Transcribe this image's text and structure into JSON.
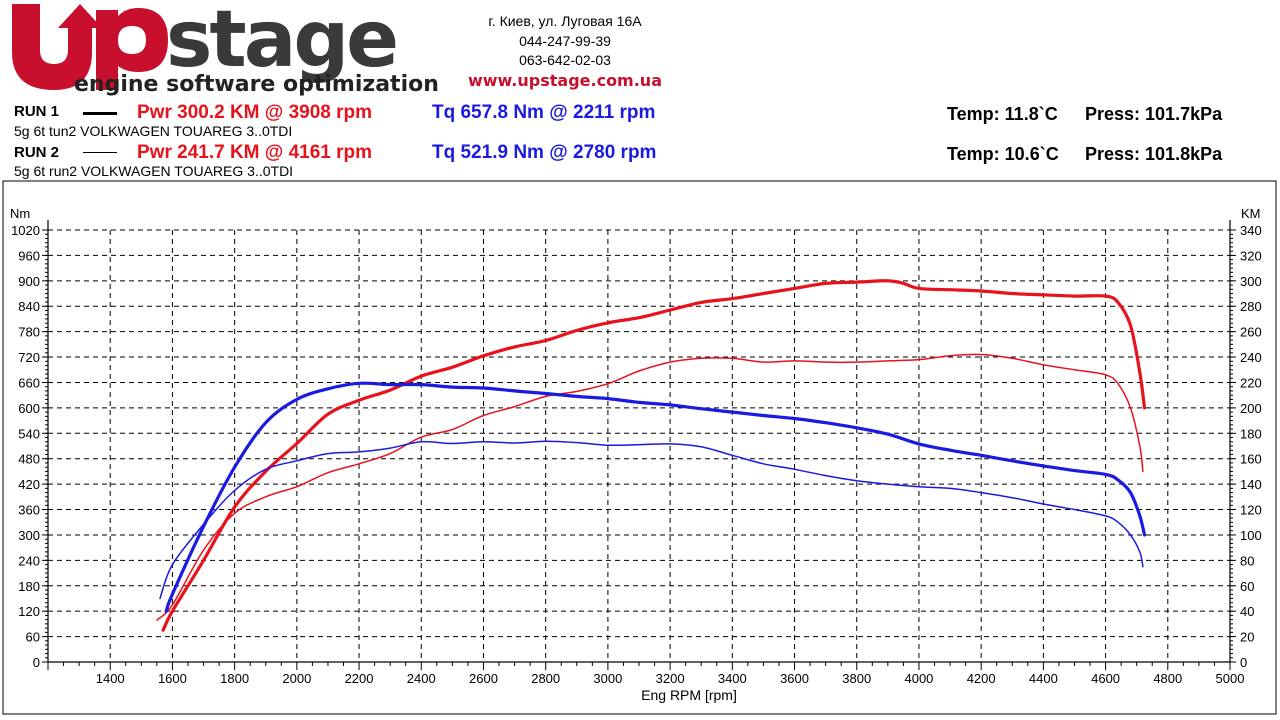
{
  "header": {
    "logo_text": "Upstage",
    "logo_tagline": "engine software optimization",
    "address": "г. Киев, ул. Луговая 16А",
    "phone1": "044-247-99-39",
    "phone2": "063-642-02-03",
    "website": "www.upstage.com.ua"
  },
  "runs": [
    {
      "label": "RUN 1",
      "description": "5g 6t tun2 VOLKWAGEN TOUAREG 3..0TDI",
      "power": "Pwr  300.2 KM @ 3908 rpm",
      "torque": "Tq 657.8 Nm @ 2211 rpm",
      "temp": "Temp: 11.8`C",
      "press": "Press: 101.7kPa"
    },
    {
      "label": "RUN 2",
      "description": "5g 6t run2 VOLKWAGEN TOUAREG 3..0TDI",
      "power": "Pwr  241.7 KM @ 4161 rpm",
      "torque": "Tq 521.9 Nm @ 2780 rpm",
      "temp": "Temp: 10.6`C",
      "press": "Press: 101.8kPa"
    }
  ],
  "colors": {
    "power": "#e8121c",
    "torque": "#1a1ae0",
    "logo_red": "#c8102e",
    "logo_grey": "#3a3a3a"
  },
  "chart_data": {
    "type": "line",
    "xlabel": "Eng RPM [rpm]",
    "ylabel_left": "Nm",
    "ylabel_right": "KM",
    "xlim": [
      1200,
      5000
    ],
    "ylim_left": [
      0,
      1020
    ],
    "ylim_right": [
      0,
      340
    ],
    "x_ticks": [
      1400,
      1600,
      1800,
      2000,
      2200,
      2400,
      2600,
      2800,
      3000,
      3200,
      3400,
      3600,
      3800,
      4000,
      4200,
      4400,
      4600,
      4800,
      5000
    ],
    "y_ticks_left": [
      0,
      60,
      120,
      180,
      240,
      300,
      360,
      420,
      480,
      540,
      600,
      660,
      720,
      780,
      840,
      900,
      960,
      1020
    ],
    "y_ticks_right": [
      0,
      20,
      40,
      60,
      80,
      100,
      120,
      140,
      160,
      180,
      200,
      220,
      240,
      260,
      280,
      300,
      320,
      340
    ],
    "grid": true,
    "series": [
      {
        "name": "RUN 1 Pwr",
        "axis": "right",
        "color": "#e8121c",
        "width": 3.2,
        "points": [
          [
            1570,
            25
          ],
          [
            1600,
            40
          ],
          [
            1700,
            80
          ],
          [
            1800,
            122
          ],
          [
            1900,
            150
          ],
          [
            2000,
            172
          ],
          [
            2100,
            195
          ],
          [
            2200,
            206
          ],
          [
            2300,
            214
          ],
          [
            2400,
            225
          ],
          [
            2500,
            232
          ],
          [
            2600,
            241
          ],
          [
            2700,
            248
          ],
          [
            2800,
            253
          ],
          [
            2900,
            261
          ],
          [
            3000,
            267
          ],
          [
            3100,
            271
          ],
          [
            3200,
            277
          ],
          [
            3300,
            283
          ],
          [
            3400,
            286
          ],
          [
            3500,
            290
          ],
          [
            3600,
            294
          ],
          [
            3700,
            298
          ],
          [
            3800,
            299
          ],
          [
            3900,
            300
          ],
          [
            3950,
            298
          ],
          [
            4000,
            294
          ],
          [
            4100,
            293
          ],
          [
            4200,
            292
          ],
          [
            4300,
            290
          ],
          [
            4400,
            289
          ],
          [
            4500,
            288
          ],
          [
            4600,
            288
          ],
          [
            4640,
            283
          ],
          [
            4680,
            265
          ],
          [
            4710,
            228
          ],
          [
            4725,
            200
          ]
        ]
      },
      {
        "name": "RUN 2 Pwr",
        "axis": "right",
        "color": "#e8121c",
        "width": 1.5,
        "points": [
          [
            1550,
            33
          ],
          [
            1600,
            45
          ],
          [
            1700,
            88
          ],
          [
            1800,
            117
          ],
          [
            1900,
            130
          ],
          [
            2000,
            138
          ],
          [
            2100,
            149
          ],
          [
            2200,
            156
          ],
          [
            2300,
            164
          ],
          [
            2400,
            177
          ],
          [
            2500,
            183
          ],
          [
            2600,
            194
          ],
          [
            2700,
            201
          ],
          [
            2800,
            209
          ],
          [
            2900,
            213
          ],
          [
            3000,
            219
          ],
          [
            3100,
            229
          ],
          [
            3200,
            236
          ],
          [
            3300,
            239
          ],
          [
            3400,
            239
          ],
          [
            3500,
            236
          ],
          [
            3600,
            237
          ],
          [
            3700,
            236
          ],
          [
            3800,
            236
          ],
          [
            3900,
            237
          ],
          [
            4000,
            238
          ],
          [
            4100,
            241
          ],
          [
            4200,
            242
          ],
          [
            4300,
            239
          ],
          [
            4400,
            234
          ],
          [
            4500,
            230
          ],
          [
            4600,
            226
          ],
          [
            4640,
            219
          ],
          [
            4680,
            200
          ],
          [
            4710,
            170
          ],
          [
            4720,
            150
          ]
        ]
      },
      {
        "name": "RUN 1 Tq",
        "axis": "left",
        "color": "#1a1ae0",
        "width": 3.2,
        "points": [
          [
            1580,
            120
          ],
          [
            1600,
            160
          ],
          [
            1700,
            320
          ],
          [
            1800,
            460
          ],
          [
            1900,
            565
          ],
          [
            2000,
            620
          ],
          [
            2100,
            645
          ],
          [
            2200,
            658
          ],
          [
            2300,
            655
          ],
          [
            2400,
            655
          ],
          [
            2500,
            649
          ],
          [
            2600,
            647
          ],
          [
            2700,
            640
          ],
          [
            2800,
            634
          ],
          [
            2900,
            627
          ],
          [
            3000,
            622
          ],
          [
            3100,
            613
          ],
          [
            3200,
            607
          ],
          [
            3300,
            598
          ],
          [
            3400,
            590
          ],
          [
            3500,
            582
          ],
          [
            3600,
            575
          ],
          [
            3700,
            565
          ],
          [
            3800,
            553
          ],
          [
            3900,
            538
          ],
          [
            4000,
            515
          ],
          [
            4100,
            500
          ],
          [
            4200,
            488
          ],
          [
            4300,
            475
          ],
          [
            4400,
            463
          ],
          [
            4500,
            452
          ],
          [
            4600,
            443
          ],
          [
            4640,
            430
          ],
          [
            4680,
            400
          ],
          [
            4710,
            345
          ],
          [
            4725,
            300
          ]
        ]
      },
      {
        "name": "RUN 2 Tq",
        "axis": "left",
        "color": "#1a1ae0",
        "width": 1.5,
        "points": [
          [
            1560,
            150
          ],
          [
            1600,
            230
          ],
          [
            1700,
            325
          ],
          [
            1800,
            405
          ],
          [
            1900,
            455
          ],
          [
            2000,
            475
          ],
          [
            2100,
            492
          ],
          [
            2200,
            496
          ],
          [
            2300,
            505
          ],
          [
            2400,
            520
          ],
          [
            2500,
            516
          ],
          [
            2600,
            520
          ],
          [
            2700,
            517
          ],
          [
            2800,
            521
          ],
          [
            2900,
            518
          ],
          [
            3000,
            512
          ],
          [
            3100,
            513
          ],
          [
            3200,
            515
          ],
          [
            3300,
            508
          ],
          [
            3400,
            488
          ],
          [
            3500,
            468
          ],
          [
            3600,
            455
          ],
          [
            3700,
            440
          ],
          [
            3800,
            428
          ],
          [
            3900,
            420
          ],
          [
            4000,
            414
          ],
          [
            4100,
            410
          ],
          [
            4200,
            400
          ],
          [
            4300,
            388
          ],
          [
            4400,
            373
          ],
          [
            4500,
            360
          ],
          [
            4600,
            345
          ],
          [
            4640,
            330
          ],
          [
            4680,
            300
          ],
          [
            4710,
            260
          ],
          [
            4720,
            225
          ]
        ]
      }
    ]
  }
}
